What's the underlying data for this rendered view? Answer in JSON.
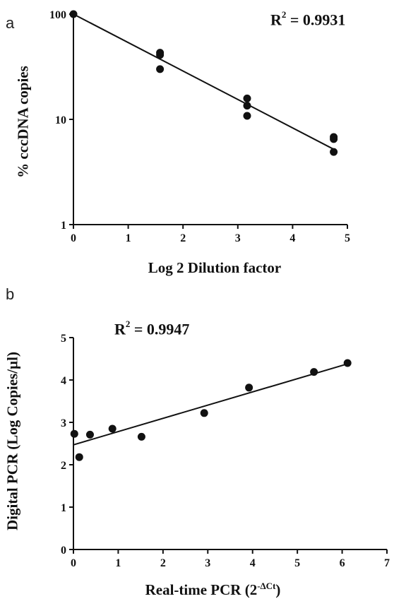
{
  "chart_data": [
    {
      "panel_label": "a",
      "type": "scatter",
      "annotation_label": "R",
      "annotation_exponent": "2",
      "annotation_value": " = 0.9931",
      "xlabel": "Log 2 Dilution factor",
      "ylabel": "% cccDNA copies",
      "xlim": [
        0,
        5
      ],
      "ylim": [
        1,
        100
      ],
      "yscale": "log",
      "x_ticks": [
        "0",
        "1",
        "2",
        "3",
        "4",
        "5"
      ],
      "y_ticks": [
        "1",
        "10",
        "100"
      ],
      "points": [
        {
          "x": 0,
          "y": 100
        },
        {
          "x": 1.58,
          "y": 43
        },
        {
          "x": 1.58,
          "y": 41
        },
        {
          "x": 1.58,
          "y": 30
        },
        {
          "x": 3.17,
          "y": 15.8
        },
        {
          "x": 3.17,
          "y": 13.5
        },
        {
          "x": 3.17,
          "y": 10.8
        },
        {
          "x": 4.75,
          "y": 6.8
        },
        {
          "x": 4.75,
          "y": 6.5
        },
        {
          "x": 4.75,
          "y": 4.9
        }
      ],
      "fit_line": {
        "x": [
          0,
          4.75
        ],
        "y": [
          100,
          5.2
        ]
      }
    },
    {
      "panel_label": "b",
      "type": "scatter",
      "annotation_label": "R",
      "annotation_exponent": "2",
      "annotation_value": " = 0.9947",
      "xlabel_main": "Real-time PCR (2",
      "xlabel_superscript": "-ΔCt",
      "xlabel_end": ")",
      "ylabel": "Digital PCR (Log Copies/µl)",
      "xlim": [
        0,
        7
      ],
      "ylim": [
        0,
        5
      ],
      "yscale": "linear",
      "x_ticks": [
        "0",
        "1",
        "2",
        "3",
        "4",
        "5",
        "6",
        "7"
      ],
      "y_ticks": [
        "0",
        "1",
        "2",
        "3",
        "4",
        "5"
      ],
      "points": [
        {
          "x": 0.02,
          "y": 2.73
        },
        {
          "x": 0.13,
          "y": 2.18
        },
        {
          "x": 0.37,
          "y": 2.71
        },
        {
          "x": 0.87,
          "y": 2.85
        },
        {
          "x": 1.52,
          "y": 2.66
        },
        {
          "x": 2.92,
          "y": 3.22
        },
        {
          "x": 3.92,
          "y": 3.82
        },
        {
          "x": 5.37,
          "y": 4.19
        },
        {
          "x": 6.12,
          "y": 4.4
        }
      ],
      "fit_line": {
        "x": [
          0,
          6.12
        ],
        "y": [
          2.47,
          4.38
        ]
      }
    }
  ]
}
